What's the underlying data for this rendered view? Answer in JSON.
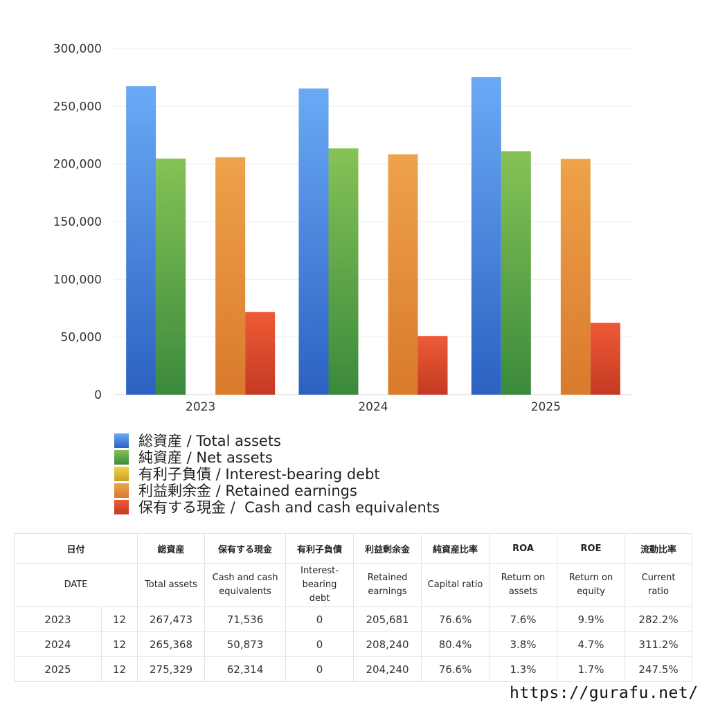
{
  "chart_data": {
    "type": "bar",
    "categories": [
      "2023",
      "2024",
      "2025"
    ],
    "ylim": [
      0,
      300000
    ],
    "yticks": [
      0,
      50000,
      100000,
      150000,
      200000,
      250000,
      300000
    ],
    "ytick_labels": [
      "0",
      "50,000",
      "100,000",
      "150,000",
      "200,000",
      "250,000",
      "300,000"
    ],
    "grid": true,
    "legend_position": "bottom",
    "series": [
      {
        "name": "総資産 / Total assets",
        "values": [
          267473,
          265368,
          275329
        ],
        "color_top": "#6aaaf5",
        "color_bottom": "#2c61c2"
      },
      {
        "name": "純資産 / Net assets",
        "values": [
          204600,
          213400,
          211000
        ],
        "color_top": "#86c256",
        "color_bottom": "#3a8a3c"
      },
      {
        "name": "有利子負債 / Interest-bearing debt",
        "values": [
          0,
          0,
          0
        ],
        "color_top": "#f2d24a",
        "color_bottom": "#c9a124"
      },
      {
        "name": "利益剰余金 / Retained earnings",
        "values": [
          205681,
          208240,
          204240
        ],
        "color_top": "#eea24a",
        "color_bottom": "#d97a2c"
      },
      {
        "name": "保有する現金 /  Cash and cash equivalents",
        "values": [
          71536,
          50873,
          62314
        ],
        "color_top": "#ee5a36",
        "color_bottom": "#c43a22"
      }
    ]
  },
  "table": {
    "headers_ja": [
      "日付",
      "総資産",
      "保有する現金",
      "有利子負債",
      "利益剰余金",
      "純資産比率",
      "ROA",
      "ROE",
      "流動比率"
    ],
    "headers_en": [
      [
        "DATE"
      ],
      [
        "Total assets"
      ],
      [
        "Cash and cash",
        "equivalents"
      ],
      [
        "Interest-",
        "bearing",
        "debt"
      ],
      [
        "Retained",
        "earnings"
      ],
      [
        "Capital ratio"
      ],
      [
        "Return on",
        "assets"
      ],
      [
        "Return on",
        "equity"
      ],
      [
        "Current",
        "ratio"
      ]
    ],
    "rows": [
      {
        "year": "2023",
        "month": "12",
        "values": [
          "267,473",
          "71,536",
          "0",
          "205,681",
          "76.6%",
          "7.6%",
          "9.9%",
          "282.2%"
        ]
      },
      {
        "year": "2024",
        "month": "12",
        "values": [
          "265,368",
          "50,873",
          "0",
          "208,240",
          "80.4%",
          "3.8%",
          "4.7%",
          "311.2%"
        ]
      },
      {
        "year": "2025",
        "month": "12",
        "values": [
          "275,329",
          "62,314",
          "0",
          "204,240",
          "76.6%",
          "1.3%",
          "1.7%",
          "247.5%"
        ]
      }
    ]
  },
  "footer": {
    "url": "https://gurafu.net/"
  }
}
